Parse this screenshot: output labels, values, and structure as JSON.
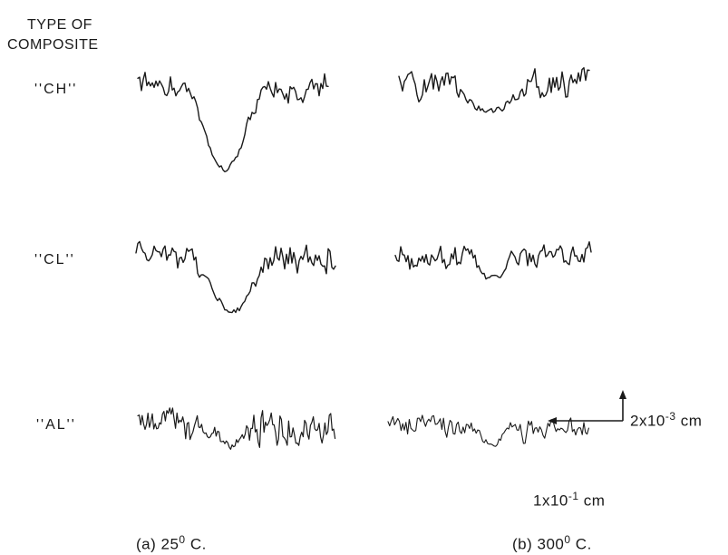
{
  "header": {
    "line1": "TYPE OF",
    "line2": "COMPOSITE"
  },
  "rows": [
    {
      "label": "''CH''"
    },
    {
      "label": "''CL''"
    },
    {
      "label": "''AL''"
    }
  ],
  "captions": {
    "a_prefix": "(a) 25",
    "a_deg": "0",
    "a_suffix": " C.",
    "b_prefix": "(b) 300",
    "b_deg": "0",
    "b_suffix": " C."
  },
  "scale_bar": {
    "vertical_base": "2x10",
    "vertical_exp": "-3",
    "vertical_unit": " cm",
    "horizontal_base": "1x10",
    "horizontal_exp": "-1",
    "horizontal_unit": " cm"
  }
}
